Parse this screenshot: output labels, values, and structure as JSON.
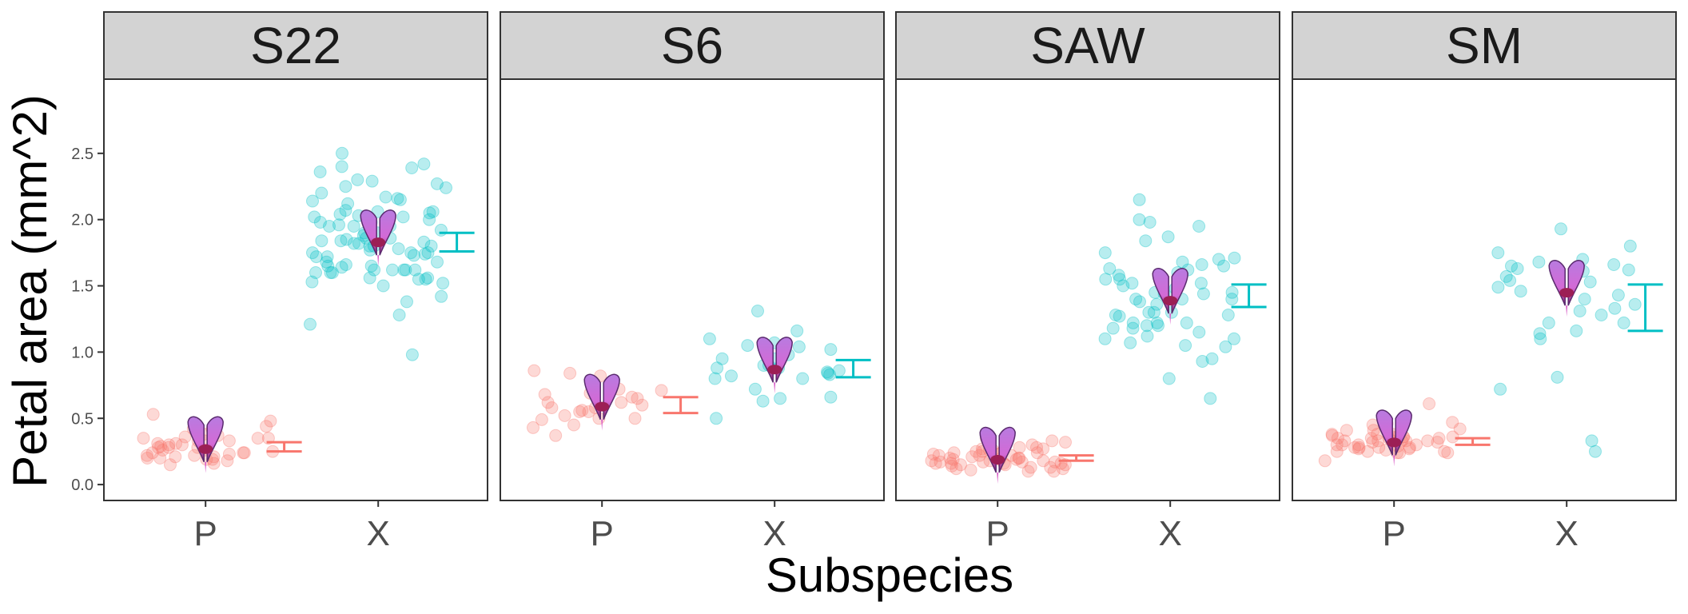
{
  "chart_data": {
    "type": "scatter",
    "xlabel": "Subspecies",
    "ylabel": "Petal area (mm^2)",
    "ylim": [
      -0.12,
      3.06
    ],
    "yticks": [
      0.0,
      0.5,
      1.0,
      1.5,
      2.0,
      2.5
    ],
    "ytick_labels": [
      "0.0",
      "0.5",
      "1.0",
      "1.5",
      "2.0",
      "2.5"
    ],
    "categories": [
      "P",
      "X"
    ],
    "grid": false,
    "colors": {
      "P": "#f8766d",
      "X": "#00bfc4",
      "strip_fill": "#d3d3d3",
      "panel_border": "#333333"
    },
    "point_alpha": 0.28,
    "flower_icon": "petal-flower-icon",
    "panels": [
      {
        "label": "S22",
        "interval_P": [
          0.25,
          0.32
        ],
        "interval_X": [
          1.76,
          1.9
        ],
        "points_P": [
          0.33,
          0.16,
          0.24,
          0.15,
          0.28,
          0.19,
          0.2,
          0.35,
          0.37,
          0.42,
          0.31,
          0.24,
          0.18,
          0.22,
          0.26,
          0.3,
          0.33,
          0.28,
          0.21,
          0.38,
          0.29,
          0.35,
          0.44,
          0.48,
          0.53,
          0.4,
          0.35,
          0.26,
          0.22,
          0.19,
          0.23,
          0.21,
          0.2,
          0.25,
          0.33,
          0.28,
          0.42,
          0.3,
          0.31,
          0.24,
          0.36
        ],
        "points_X": [
          2.3,
          2.36,
          2.27,
          2.5,
          1.8,
          1.62,
          1.64,
          1.62,
          1.9,
          1.73,
          1.28,
          1.65,
          2.04,
          1.98,
          1.84,
          1.6,
          1.86,
          2.02,
          1.78,
          1.92,
          1.82,
          1.95,
          2.06,
          1.8,
          1.74,
          1.65,
          1.56,
          2.25,
          2.4,
          2.39,
          1.72,
          1.85,
          1.62,
          1.56,
          1.52,
          1.68,
          1.75,
          0.98,
          2.16,
          2.17,
          2.14,
          1.95,
          2.03,
          1.96,
          1.88,
          1.62,
          1.75,
          1.66,
          1.42,
          1.21,
          1.82,
          1.95,
          1.77,
          2.2,
          2.24,
          2.29,
          2.05,
          1.86,
          1.8,
          1.68,
          1.55,
          2.06,
          2.07,
          1.75,
          1.6,
          1.38,
          1.62,
          2.15,
          2.0,
          1.84,
          1.83,
          1.6,
          2.02,
          1.98,
          1.53,
          1.5,
          2.42,
          1.55,
          1.95,
          1.9,
          1.72,
          2.12
        ]
      },
      {
        "label": "S6",
        "interval_P": [
          0.54,
          0.66
        ],
        "interval_X": [
          0.81,
          0.94
        ],
        "points_P": [
          0.82,
          0.49,
          0.56,
          0.52,
          0.45,
          0.6,
          0.58,
          0.37,
          0.43,
          0.72,
          0.68,
          0.55,
          0.62,
          0.5,
          0.69,
          0.86,
          0.65,
          0.58,
          0.5,
          0.55,
          0.71,
          0.66,
          0.62,
          0.84
        ],
        "points_X": [
          0.72,
          0.5,
          0.85,
          0.88,
          0.8,
          0.82,
          1.05,
          1.1,
          0.98,
          0.99,
          1.31,
          0.65,
          0.66,
          0.88,
          0.9,
          0.95,
          0.83,
          1.16,
          1.07,
          1.02,
          1.04,
          0.9,
          0.86,
          0.84,
          0.63,
          0.95,
          0.8
        ]
      },
      {
        "label": "SAW",
        "interval_P": [
          0.18,
          0.22
        ],
        "interval_X": [
          1.34,
          1.51
        ],
        "points_P": [
          0.24,
          0.17,
          0.16,
          0.15,
          0.19,
          0.27,
          0.26,
          0.22,
          0.12,
          0.15,
          0.2,
          0.25,
          0.3,
          0.28,
          0.23,
          0.18,
          0.13,
          0.1,
          0.16,
          0.22,
          0.26,
          0.32,
          0.28,
          0.2,
          0.17,
          0.14,
          0.12,
          0.24,
          0.21,
          0.18,
          0.16,
          0.19,
          0.23,
          0.27,
          0.24,
          0.2,
          0.15,
          0.13,
          0.11,
          0.1,
          0.22,
          0.17,
          0.18,
          0.19,
          0.25,
          0.35,
          0.33,
          0.36,
          0.17,
          0.16
        ],
        "points_X": [
          1.87,
          1.4,
          1.36,
          1.3,
          1.2,
          1.1,
          1.63,
          1.44,
          1.44,
          1.6,
          1.04,
          1.28,
          1.22,
          1.52,
          1.45,
          1.55,
          1.58,
          1.66,
          1.7,
          1.75,
          1.48,
          1.38,
          1.3,
          1.22,
          0.93,
          0.8,
          1.18,
          1.62,
          1.65,
          1.45,
          1.3,
          1.4,
          0.95,
          1.2,
          1.18,
          1.07,
          1.55,
          1.52,
          1.68,
          1.71,
          2.0,
          1.98,
          1.84,
          1.5,
          1.28,
          1.22,
          0.65,
          1.95,
          2.15,
          1.4,
          1.27,
          1.15,
          1.1,
          1.05,
          1.12
        ]
      },
      {
        "label": "SM",
        "interval_P": [
          0.3,
          0.35
        ],
        "interval_X": [
          1.16,
          1.51
        ],
        "points_P": [
          0.35,
          0.33,
          0.36,
          0.3,
          0.28,
          0.35,
          0.33,
          0.29,
          0.36,
          0.27,
          0.33,
          0.25,
          0.33,
          0.38,
          0.47,
          0.61,
          0.36,
          0.46,
          0.25,
          0.26,
          0.3,
          0.24,
          0.32,
          0.28,
          0.27,
          0.38,
          0.41,
          0.45,
          0.42,
          0.32,
          0.28,
          0.24,
          0.37,
          0.35,
          0.41,
          0.33,
          0.25,
          0.3,
          0.24,
          0.36,
          0.28,
          0.33,
          0.3,
          0.36,
          0.35,
          0.18,
          0.38
        ],
        "points_X": [
          1.93,
          1.49,
          1.61,
          1.65,
          1.54,
          1.14,
          0.81,
          1.53,
          1.8,
          1.43,
          1.46,
          1.75,
          1.66,
          1.36,
          1.33,
          1.28,
          1.16,
          1.22,
          0.72,
          1.1,
          1.7,
          1.57,
          1.4,
          1.22,
          1.68,
          1.62,
          1.31,
          1.63,
          0.33,
          0.25
        ]
      }
    ]
  }
}
